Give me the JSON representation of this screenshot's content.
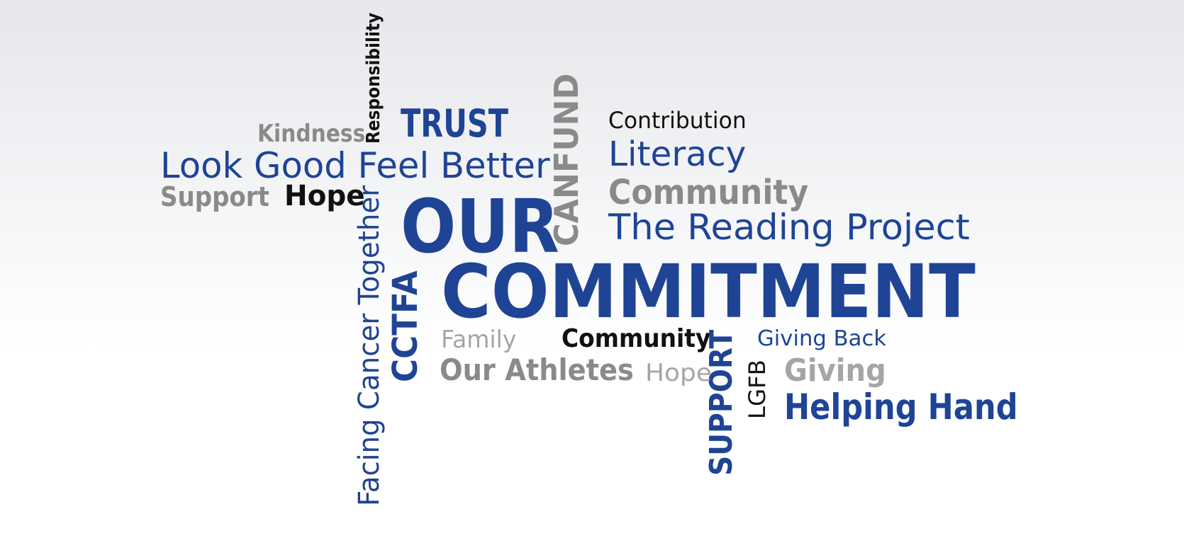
{
  "colors": {
    "blue": "#1f4495",
    "gray": "#8a8a8a",
    "light_gray": "#a5a5a5",
    "black": "#111111"
  },
  "words": {
    "responsibility": "Responsibility",
    "kindness": "Kindness",
    "trust": "TRUST",
    "canfund": "CANFUND",
    "contribution": "Contribution",
    "literacy": "Literacy",
    "look_good": "Look Good Feel Better",
    "support_left": "Support",
    "hope_black": "Hope",
    "community_gray": "Community",
    "our": "OUR",
    "reading_project": "The Reading Project",
    "facing_cancer": "Facing Cancer Together",
    "cctfa": "CCTFA",
    "commitment": "COMMITMENT",
    "family": "Family",
    "community_black": "Community",
    "support_vertical": "SUPPORT",
    "giving_back": "Giving Back",
    "our_athletes": "Our Athletes",
    "hope_gray": "Hope",
    "lgfb": "LGFB",
    "giving": "Giving",
    "helping_hand": "Helping Hand"
  }
}
